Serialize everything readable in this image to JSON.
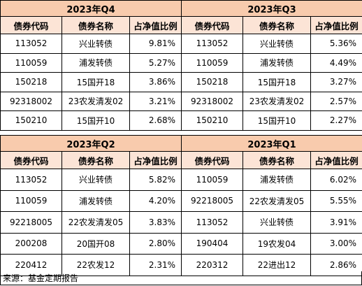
{
  "columns": {
    "code": "债券代码",
    "name": "债券名称",
    "ratio": "占净值比例"
  },
  "panels": {
    "q4": {
      "title": "2023年Q4",
      "rows": [
        {
          "code": "113052",
          "name": "兴业转债",
          "ratio": "9.81%"
        },
        {
          "code": "110059",
          "name": "浦发转债",
          "ratio": "5.27%"
        },
        {
          "code": "150218",
          "name": "15国开18",
          "ratio": "3.86%"
        },
        {
          "code": "92318002",
          "name": "23农发清发02",
          "ratio": "3.21%"
        },
        {
          "code": "150210",
          "name": "15国开10",
          "ratio": "2.68%"
        }
      ]
    },
    "q3": {
      "title": "2023年Q3",
      "rows": [
        {
          "code": "113052",
          "name": "兴业转债",
          "ratio": "5.36%"
        },
        {
          "code": "110059",
          "name": "浦发转债",
          "ratio": "4.49%"
        },
        {
          "code": "150218",
          "name": "15国开18",
          "ratio": "3.27%"
        },
        {
          "code": "92318002",
          "name": "23农发清发02",
          "ratio": "2.57%"
        },
        {
          "code": "150210",
          "name": "15国开10",
          "ratio": "2.27%"
        }
      ]
    },
    "q2": {
      "title": "2023年Q2",
      "rows": [
        {
          "code": "113052",
          "name": "兴业转债",
          "ratio": "5.82%"
        },
        {
          "code": "110059",
          "name": "浦发转债",
          "ratio": "4.20%"
        },
        {
          "code": "92218005",
          "name": "22农发清发05",
          "ratio": "3.83%"
        },
        {
          "code": "200208",
          "name": "20国开08",
          "ratio": "2.80%"
        },
        {
          "code": "220412",
          "name": "22农发12",
          "ratio": "2.31%"
        }
      ]
    },
    "q1": {
      "title": "2023年Q1",
      "rows": [
        {
          "code": "110059",
          "name": "浦发转债",
          "ratio": "6.02%"
        },
        {
          "code": "92218005",
          "name": "22农发清发05",
          "ratio": "5.55%"
        },
        {
          "code": "113052",
          "name": "兴业转债",
          "ratio": "3.91%"
        },
        {
          "code": "190404",
          "name": "19农发04",
          "ratio": "3.00%"
        },
        {
          "code": "220312",
          "name": "22进出12",
          "ratio": "2.86%"
        }
      ]
    }
  },
  "source_note": "来源：基金定期报告",
  "colors": {
    "title_fill": "#f8cbad",
    "header_fill": "#fce4d6",
    "border": "#000000"
  }
}
